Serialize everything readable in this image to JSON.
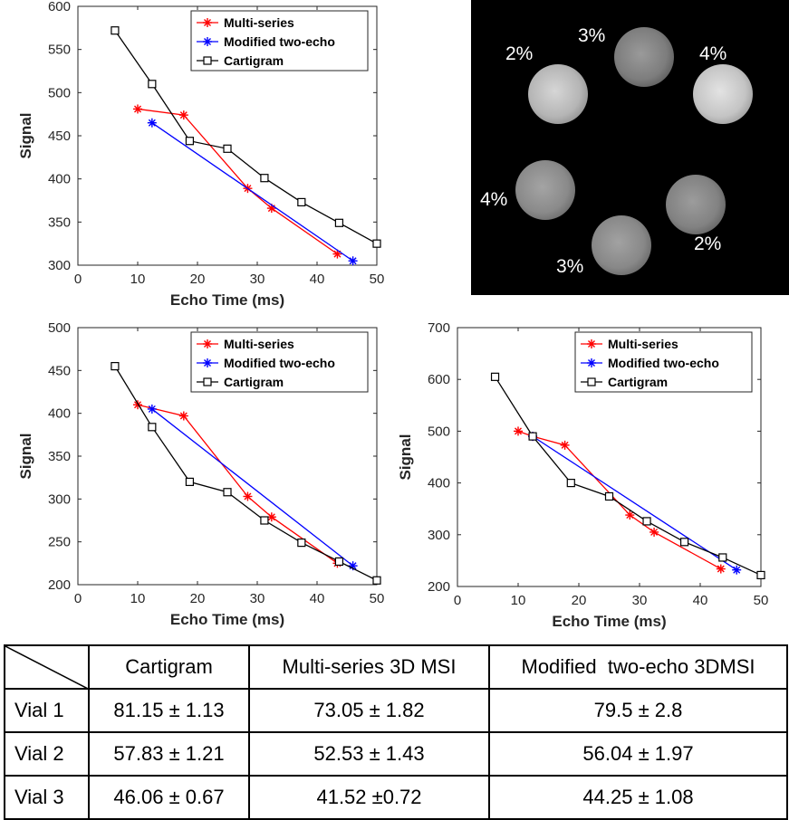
{
  "chart_data": [
    {
      "type": "line",
      "xlabel": "Echo Time (ms)",
      "ylabel": "Signal",
      "xlim": [
        0,
        50
      ],
      "ylim": [
        300,
        600
      ],
      "xticks": [
        0,
        10,
        20,
        30,
        40,
        50
      ],
      "yticks": [
        300,
        350,
        400,
        450,
        500,
        550,
        600
      ],
      "grid": false,
      "legend_position": "top-right",
      "series": [
        {
          "name": "Multi-series",
          "color": "#ff0000",
          "marker": "asterisk",
          "x": [
            10,
            17.7,
            28.4,
            32.4,
            43.4
          ],
          "y": [
            481,
            474,
            389,
            366,
            313
          ]
        },
        {
          "name": "Modified two-echo",
          "color": "#0000ff",
          "marker": "asterisk",
          "x": [
            12.4,
            46
          ],
          "y": [
            465,
            305
          ]
        },
        {
          "name": "Cartigram",
          "color": "#000000",
          "marker": "square",
          "x": [
            6.2,
            12.4,
            18.7,
            25,
            31.2,
            37.4,
            43.7,
            50
          ],
          "y": [
            572,
            510,
            444,
            435,
            401,
            373,
            349,
            325
          ]
        }
      ]
    },
    {
      "type": "line",
      "xlabel": "Echo Time (ms)",
      "ylabel": "Signal",
      "xlim": [
        0,
        50
      ],
      "ylim": [
        200,
        500
      ],
      "xticks": [
        0,
        10,
        20,
        30,
        40,
        50
      ],
      "yticks": [
        200,
        250,
        300,
        350,
        400,
        450,
        500
      ],
      "grid": false,
      "legend_position": "top-right",
      "series": [
        {
          "name": "Multi-series",
          "color": "#ff0000",
          "marker": "asterisk",
          "x": [
            10,
            17.7,
            28.4,
            32.4,
            43.4
          ],
          "y": [
            410,
            397,
            303,
            279,
            225
          ]
        },
        {
          "name": "Modified two-echo",
          "color": "#0000ff",
          "marker": "asterisk",
          "x": [
            12.4,
            46
          ],
          "y": [
            405,
            222
          ]
        },
        {
          "name": "Cartigram",
          "color": "#000000",
          "marker": "square",
          "x": [
            6.2,
            12.4,
            18.7,
            25,
            31.2,
            37.4,
            43.7,
            50
          ],
          "y": [
            455,
            384,
            320,
            308,
            275,
            249,
            227,
            205
          ]
        }
      ]
    },
    {
      "type": "line",
      "xlabel": "Echo Time (ms)",
      "ylabel": "Signal",
      "xlim": [
        0,
        50
      ],
      "ylim": [
        200,
        700
      ],
      "xticks": [
        0,
        10,
        20,
        30,
        40,
        50
      ],
      "yticks": [
        200,
        300,
        400,
        500,
        600,
        700
      ],
      "grid": false,
      "legend_position": "top-right",
      "series": [
        {
          "name": "Multi-series",
          "color": "#ff0000",
          "marker": "asterisk",
          "x": [
            10,
            12.4,
            17.7,
            28.4,
            32.4,
            43.4
          ],
          "y": [
            500,
            490,
            473,
            338,
            305,
            234
          ]
        },
        {
          "name": "Modified two-echo",
          "color": "#0000ff",
          "marker": "asterisk",
          "x": [
            12.4,
            46
          ],
          "y": [
            490,
            232
          ]
        },
        {
          "name": "Cartigram",
          "color": "#000000",
          "marker": "square",
          "x": [
            6.2,
            12.4,
            18.7,
            25,
            31.2,
            37.4,
            43.7,
            50
          ],
          "y": [
            605,
            490,
            400,
            374,
            326,
            286,
            256,
            222
          ]
        }
      ]
    }
  ],
  "phantom_labels": [
    "3%",
    "2%",
    "4%",
    "4%",
    "2%",
    "3%"
  ],
  "table": {
    "headers": [
      "",
      "Cartigram",
      "Multi-series 3D MSI",
      "Modified  two-echo 3DMSI"
    ],
    "rows": [
      [
        "Vial 1",
        "81.15 ± 1.13",
        "73.05 ± 1.82",
        "79.5 ± 2.8"
      ],
      [
        "Vial 2",
        "57.83 ± 1.21",
        "52.53 ± 1.43",
        "56.04 ± 1.97"
      ],
      [
        "Vial 3",
        "46.06 ± 0.67",
        "41.52 ±0.72",
        "44.25 ± 1.08"
      ]
    ]
  }
}
